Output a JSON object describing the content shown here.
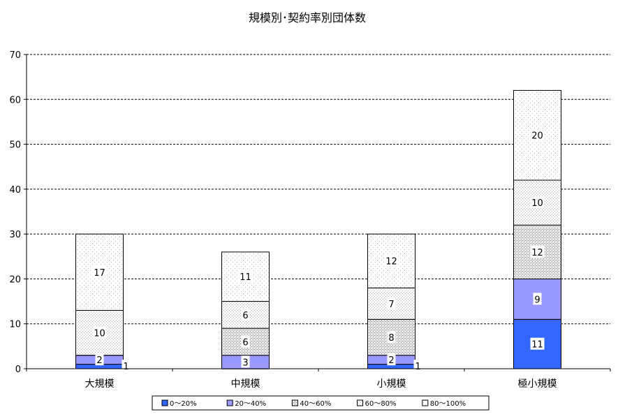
{
  "chart_data": {
    "type": "bar",
    "stacked": true,
    "title": "規模別･契約率別団体数",
    "xlabel": "",
    "ylabel": "",
    "ylim": [
      0,
      70
    ],
    "yticks": [
      "0",
      "10",
      "20",
      "30",
      "40",
      "50",
      "60",
      "70"
    ],
    "grid": true,
    "legend_position": "bottom",
    "categories": [
      "大規模",
      "中規模",
      "小規模",
      "極小規模"
    ],
    "series": [
      {
        "name": "0～20%",
        "values": [
          1,
          0,
          1,
          11
        ],
        "labels": [
          "1",
          "",
          "1",
          "11"
        ],
        "color": "#3366FF"
      },
      {
        "name": "20～40%",
        "values": [
          2,
          3,
          2,
          9
        ],
        "labels": [
          "2",
          "3",
          "2",
          "9"
        ],
        "color": "#9999FF"
      },
      {
        "name": "40～60%",
        "values": [
          0,
          6,
          8,
          12
        ],
        "labels": [
          "",
          "6",
          "8",
          "12"
        ],
        "color": "#D8D8D8"
      },
      {
        "name": "60～80%",
        "values": [
          10,
          6,
          7,
          10
        ],
        "labels": [
          "10",
          "6",
          "7",
          "10"
        ],
        "color": "#F2F2F2"
      },
      {
        "name": "80～100%",
        "values": [
          17,
          11,
          12,
          20
        ],
        "labels": [
          "17",
          "11",
          "12",
          "20"
        ],
        "color": "#FAFAFA"
      }
    ]
  }
}
